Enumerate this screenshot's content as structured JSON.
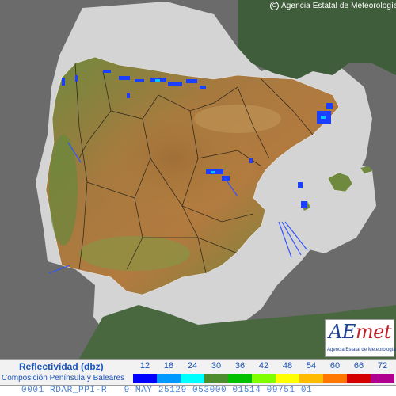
{
  "copyright": "Agencia Estatal de Meteorología",
  "copyright_icon": "copyright-c-icon",
  "logo": {
    "word": "AEmet",
    "subtitle": "Agencia Estatal de Meteorología"
  },
  "legend": {
    "title": "Reflectividad (dbz)",
    "subtitle": "Composición Península y Baleares",
    "scale": [
      {
        "label": "12",
        "color": "#0000ff"
      },
      {
        "label": "18",
        "color": "#0099ff"
      },
      {
        "label": "24",
        "color": "#00ffff"
      },
      {
        "label": "30",
        "color": "#4d8c2f"
      },
      {
        "label": "36",
        "color": "#00c000"
      },
      {
        "label": "42",
        "color": "#80ff00"
      },
      {
        "label": "48",
        "color": "#ffff00"
      },
      {
        "label": "54",
        "color": "#ffbb00"
      },
      {
        "label": "60",
        "color": "#ff7700"
      },
      {
        "label": "66",
        "color": "#d40000"
      },
      {
        "label": "72",
        "color": "#b0008f"
      }
    ]
  },
  "footer": "0001 RDAR_PPI-R   9 MAY 25129 053000 01514 09751 01",
  "colors": {
    "sea": "#6b6b6b",
    "radar_coverage": "#d4d4d4",
    "land_foreign": "#3f5d3a",
    "echo": "#1a3fff"
  }
}
